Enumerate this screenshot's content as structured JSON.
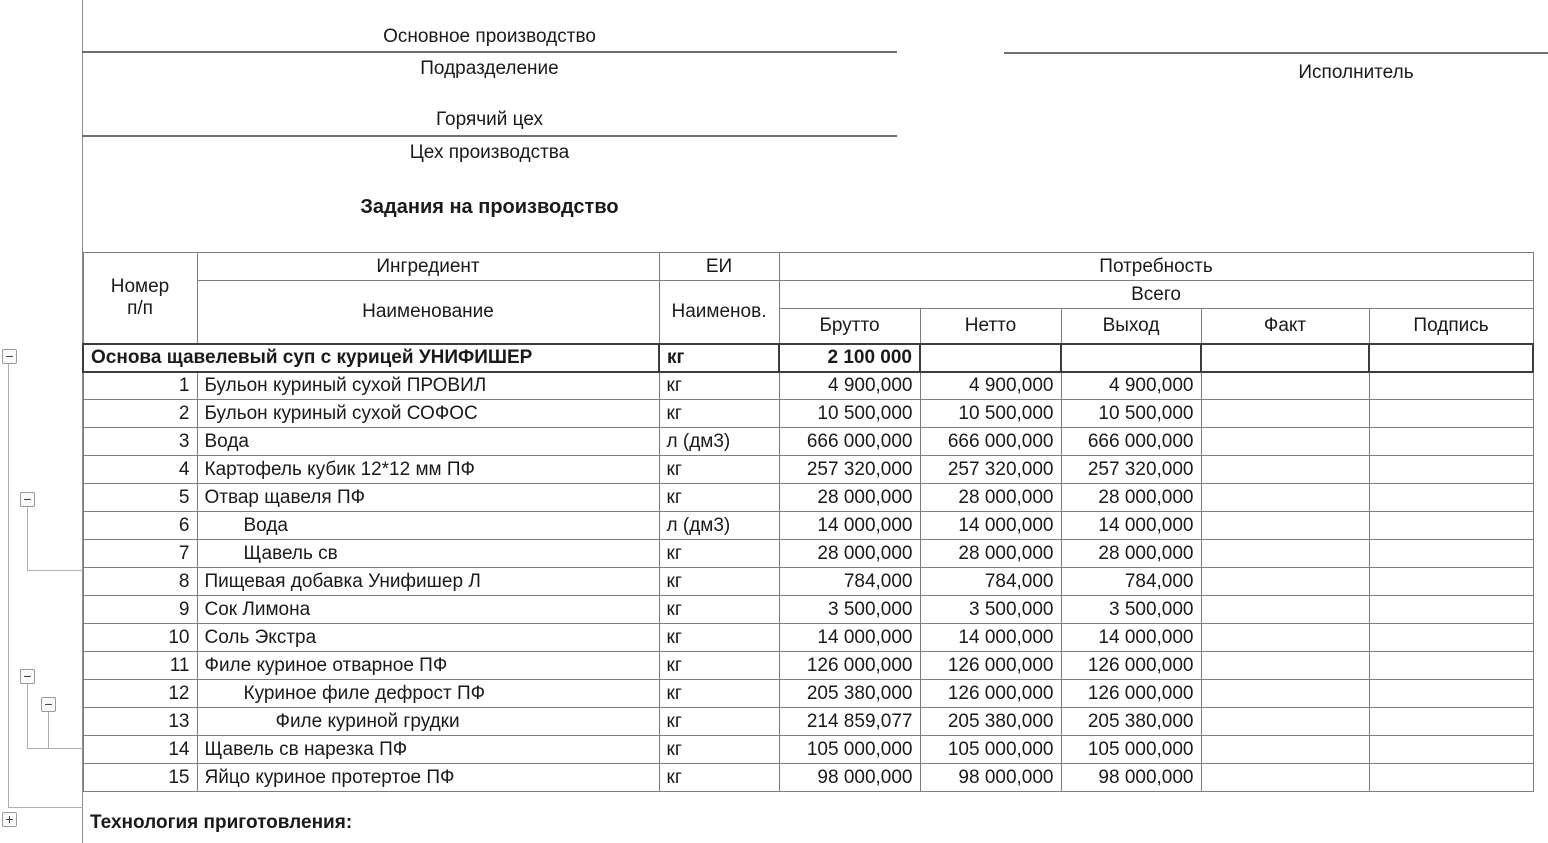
{
  "icons": {
    "collapse": "−",
    "expand": "+"
  },
  "colors": {
    "text": "#1a1a1a",
    "grid": "#7d7d7d",
    "grid_strong": "#3c3c3c",
    "underline": "#6f6f6f",
    "tree_line": "#b0b0b0"
  },
  "header": {
    "department_value": "Основное производство",
    "department_label": "Подразделение",
    "executor_label": "Исполнитель",
    "shop_value": "Горячий цех",
    "shop_label": "Цех производства",
    "doc_title": "Задания на производство"
  },
  "table": {
    "headers": {
      "number_line1": "Номер",
      "number_line2": "п/п",
      "ingredient": "Ингредиент",
      "name": "Наименование",
      "unit": "ЕИ",
      "unit_name": "Наименов.",
      "need": "Потребность",
      "total": "Всего",
      "gross": "Брутто",
      "net": "Нетто",
      "output": "Выход",
      "fact": "Факт",
      "signature": "Подпись"
    },
    "summary": {
      "name": "Основа щавелевый суп с курицей УНИФИШЕР",
      "unit": "кг",
      "gross": "2 100 000",
      "net": "",
      "output": "",
      "fact": "",
      "signature": ""
    },
    "rows": [
      {
        "num": "1",
        "indent": 0,
        "name": "Бульон куриный сухой ПРОВИЛ",
        "unit": "кг",
        "gross": "4 900,000",
        "net": "4 900,000",
        "output": "4 900,000",
        "fact": "",
        "signature": ""
      },
      {
        "num": "2",
        "indent": 0,
        "name": "Бульон куриный сухой СОФОС",
        "unit": "кг",
        "gross": "10 500,000",
        "net": "10 500,000",
        "output": "10 500,000",
        "fact": "",
        "signature": ""
      },
      {
        "num": "3",
        "indent": 0,
        "name": "Вода",
        "unit": "л (дм3)",
        "gross": "666 000,000",
        "net": "666 000,000",
        "output": "666 000,000",
        "fact": "",
        "signature": ""
      },
      {
        "num": "4",
        "indent": 0,
        "name": "Картофель кубик 12*12 мм ПФ",
        "unit": "кг",
        "gross": "257 320,000",
        "net": "257 320,000",
        "output": "257 320,000",
        "fact": "",
        "signature": ""
      },
      {
        "num": "5",
        "indent": 0,
        "name": "Отвар щавеля ПФ",
        "unit": "кг",
        "gross": "28 000,000",
        "net": "28 000,000",
        "output": "28 000,000",
        "fact": "",
        "signature": ""
      },
      {
        "num": "6",
        "indent": 1,
        "name": "Вода",
        "unit": "л (дм3)",
        "gross": "14 000,000",
        "net": "14 000,000",
        "output": "14 000,000",
        "fact": "",
        "signature": ""
      },
      {
        "num": "7",
        "indent": 1,
        "name": "Щавель св",
        "unit": "кг",
        "gross": "28 000,000",
        "net": "28 000,000",
        "output": "28 000,000",
        "fact": "",
        "signature": ""
      },
      {
        "num": "8",
        "indent": 0,
        "name": "Пищевая добавка Унифишер Л",
        "unit": "кг",
        "gross": "784,000",
        "net": "784,000",
        "output": "784,000",
        "fact": "",
        "signature": ""
      },
      {
        "num": "9",
        "indent": 0,
        "name": "Сок Лимона",
        "unit": "кг",
        "gross": "3 500,000",
        "net": "3 500,000",
        "output": "3 500,000",
        "fact": "",
        "signature": ""
      },
      {
        "num": "10",
        "indent": 0,
        "name": "Соль Экстра",
        "unit": "кг",
        "gross": "14 000,000",
        "net": "14 000,000",
        "output": "14 000,000",
        "fact": "",
        "signature": ""
      },
      {
        "num": "11",
        "indent": 0,
        "name": "Филе куриное отварное ПФ",
        "unit": "кг",
        "gross": "126 000,000",
        "net": "126 000,000",
        "output": "126 000,000",
        "fact": "",
        "signature": ""
      },
      {
        "num": "12",
        "indent": 1,
        "name": "Куриное филе дефрост ПФ",
        "unit": "кг",
        "gross": "205 380,000",
        "net": "126 000,000",
        "output": "126 000,000",
        "fact": "",
        "signature": ""
      },
      {
        "num": "13",
        "indent": 2,
        "name": "Филе куриной грудки",
        "unit": "кг",
        "gross": "214 859,077",
        "net": "205 380,000",
        "output": "205 380,000",
        "fact": "",
        "signature": ""
      },
      {
        "num": "14",
        "indent": 0,
        "name": "Щавель св нарезка ПФ",
        "unit": "кг",
        "gross": "105 000,000",
        "net": "105 000,000",
        "output": "105 000,000",
        "fact": "",
        "signature": ""
      },
      {
        "num": "15",
        "indent": 0,
        "name": "Яйцо куриное протертое ПФ",
        "unit": "кг",
        "gross": "98 000,000",
        "net": "98 000,000",
        "output": "98 000,000",
        "fact": "",
        "signature": ""
      }
    ]
  },
  "footer": {
    "technology_label": "Технология приготовления:"
  }
}
